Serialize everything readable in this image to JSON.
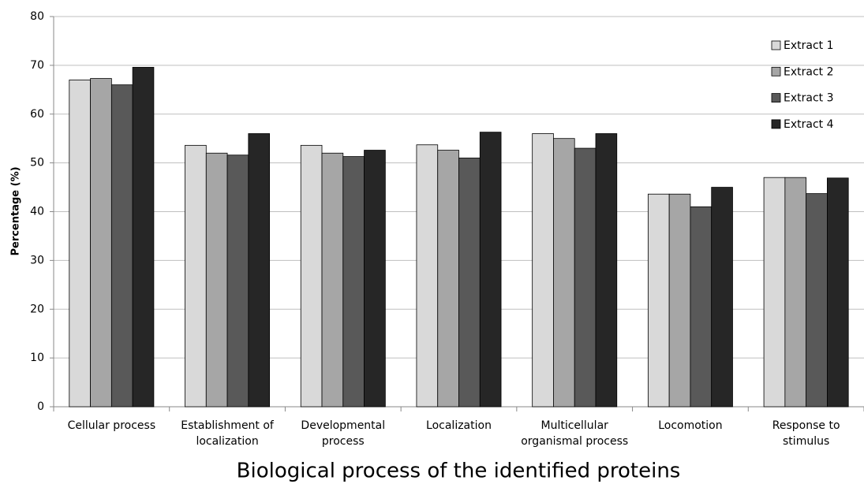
{
  "chart_data": {
    "type": "bar",
    "x_label": "Biological process of the identified proteins",
    "y_label": "Percentage (%)",
    "categories": [
      "Cellular process",
      "Establishment of\nlocalization",
      "Developmental\nprocess",
      "Localization",
      "Multicellular\norganismal process",
      "Locomotion",
      "Response to\nstimulus"
    ],
    "series": [
      {
        "name": "Extract 1",
        "color": "#d9d9d9",
        "values": [
          67,
          53.6,
          53.6,
          53.7,
          56,
          43.6,
          47
        ]
      },
      {
        "name": "Extract 2",
        "color": "#a6a6a6",
        "values": [
          67.3,
          52,
          52,
          52.6,
          55,
          43.6,
          47
        ]
      },
      {
        "name": "Extract 3",
        "color": "#595959",
        "values": [
          66,
          51.6,
          51.3,
          51,
          53,
          41,
          43.7
        ]
      },
      {
        "name": "Extract 4",
        "color": "#262626",
        "values": [
          69.6,
          56,
          52.6,
          56.3,
          56,
          45,
          46.9
        ]
      }
    ],
    "ylim": [
      0,
      80
    ],
    "yticks": [
      0,
      10,
      20,
      30,
      40,
      50,
      60,
      70,
      80
    ],
    "grid": true,
    "legend": "top-right"
  }
}
